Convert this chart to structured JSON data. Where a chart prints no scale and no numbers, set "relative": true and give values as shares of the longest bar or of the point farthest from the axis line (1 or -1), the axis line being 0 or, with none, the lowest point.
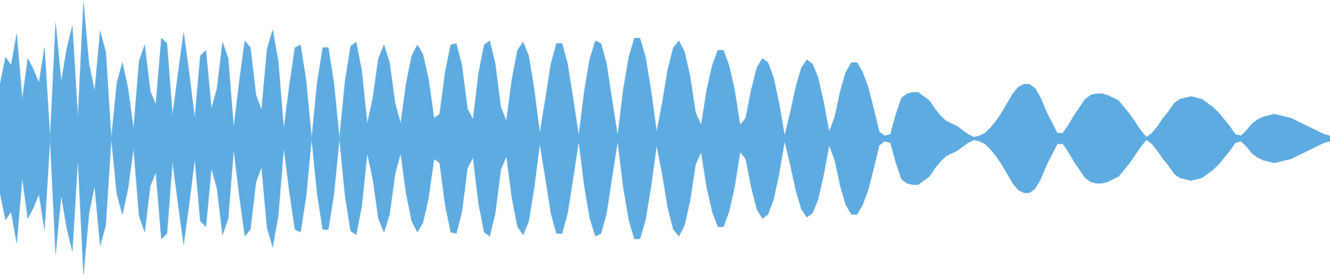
{
  "chart_data": {
    "type": "area",
    "relative": true,
    "ref_lines": [
      {
        "axis": "y",
        "value": 0,
        "color": "#5dabe0"
      }
    ],
    "categories": [
      null,
      null,
      null,
      null,
      null,
      null,
      null,
      null,
      null,
      null,
      null,
      null,
      null,
      null,
      null,
      null,
      null,
      null,
      null,
      null,
      null,
      null,
      null,
      null,
      null,
      null,
      null,
      null,
      null,
      null,
      null,
      null,
      null,
      null,
      null,
      null,
      null,
      null,
      null,
      null,
      null,
      null,
      null,
      null,
      null,
      null,
      null,
      null,
      null,
      null,
      null,
      null,
      null,
      null,
      null,
      null,
      null,
      null,
      null,
      null,
      null,
      null,
      null,
      null,
      null,
      null,
      null,
      null,
      null,
      null,
      null,
      null,
      null,
      null,
      null,
      null,
      null,
      null,
      null,
      null,
      null,
      null,
      null,
      null,
      null,
      null,
      null,
      null,
      null,
      null,
      null,
      null,
      null,
      null,
      null,
      null,
      null,
      null,
      null,
      null,
      null,
      null,
      null,
      null,
      null,
      null,
      null,
      null,
      null,
      null,
      null,
      null,
      null,
      null,
      null,
      null,
      null,
      null,
      null,
      null,
      null,
      null,
      null,
      null,
      null,
      null,
      null,
      null,
      null,
      null,
      null,
      null,
      null,
      null,
      null,
      null,
      null,
      null,
      null,
      null,
      null,
      null,
      null,
      null,
      null,
      null,
      null,
      null,
      null,
      null,
      null,
      null,
      null,
      null,
      null,
      null,
      null,
      null,
      null,
      null,
      null,
      null,
      null,
      null,
      null,
      null,
      null,
      null,
      null,
      null,
      null,
      null,
      null,
      null,
      null,
      null,
      null,
      null,
      null,
      null,
      null,
      null,
      null,
      null,
      null,
      null,
      null,
      null,
      null,
      null,
      null,
      null,
      null,
      null,
      null,
      null,
      null,
      null,
      null,
      null,
      null,
      null,
      null,
      null,
      null,
      null,
      null,
      null,
      null,
      null,
      null,
      null,
      null,
      null,
      null,
      null,
      null,
      null,
      null,
      null,
      null,
      null,
      null,
      null,
      null,
      null,
      null,
      null,
      null,
      null,
      null,
      null,
      null,
      null,
      null,
      null,
      null,
      null,
      null,
      null
    ],
    "series": [
      {
        "color": "#5dabe0",
        "values": [
          0.4,
          0.6,
          0.54,
          0.77,
          0.29,
          0.59,
          0.51,
          0.41,
          0.67,
          0,
          0.85,
          0.42,
          0.66,
          0.83,
          0.15,
          1,
          0.55,
          0.35,
          0.79,
          0.64,
          0,
          0.41,
          0.56,
          0.37,
          0.07,
          0.57,
          0.69,
          0.35,
          0.25,
          0.74,
          0.7,
          0.17,
          0.48,
          0.78,
          0.48,
          0.15,
          0.61,
          0.65,
          0.22,
          0.37,
          0.71,
          0.59,
          0.08,
          0.42,
          0.72,
          0.67,
          0.32,
          0.21,
          0.66,
          0.8,
          0.57,
          0.07,
          0.39,
          0.67,
          0.69,
          0.43,
          0,
          0.41,
          0.67,
          0.67,
          0.41,
          0,
          0.42,
          0.68,
          0.71,
          0.5,
          0.11,
          0.3,
          0.59,
          0.69,
          0.56,
          0.26,
          0.11,
          0.41,
          0.61,
          0.69,
          0.62,
          0.44,
          0.15,
          0.18,
          0.49,
          0.69,
          0.7,
          0.54,
          0.22,
          0.14,
          0.48,
          0.69,
          0.72,
          0.55,
          0.23,
          0.13,
          0.44,
          0.65,
          0.71,
          0.61,
          0.36,
          0.04,
          0.29,
          0.55,
          0.7,
          0.7,
          0.55,
          0.29,
          0.02,
          0.35,
          0.59,
          0.72,
          0.7,
          0.55,
          0.28,
          0.02,
          0.36,
          0.6,
          0.74,
          0.74,
          0.6,
          0.35,
          0.05,
          0.26,
          0.51,
          0.67,
          0.72,
          0.64,
          0.46,
          0.19,
          0.1,
          0.36,
          0.54,
          0.65,
          0.65,
          0.54,
          0.36,
          0.1,
          0.15,
          0.36,
          0.52,
          0.59,
          0.56,
          0.45,
          0.26,
          0.02,
          0.19,
          0.38,
          0.52,
          0.58,
          0.55,
          0.45,
          0.27,
          0.05,
          0.16,
          0.35,
          0.49,
          0.56,
          0.56,
          0.49,
          0.38,
          0.22,
          0.05,
          0.02,
          0.03,
          0.18,
          0.3,
          0.33,
          0.34,
          0.34,
          0.31,
          0.28,
          0.22,
          0.17,
          0.13,
          0.11,
          0.09,
          0.06,
          0.03,
          0.01,
          0.02,
          0.04,
          0.08,
          0.13,
          0.19,
          0.26,
          0.33,
          0.38,
          0.4,
          0.4,
          0.37,
          0.3,
          0.2,
          0.12,
          0.04,
          0.04,
          0.1,
          0.17,
          0.23,
          0.29,
          0.32,
          0.33,
          0.33,
          0.32,
          0.3,
          0.28,
          0.23,
          0.18,
          0.12,
          0.06,
          0.01,
          0.04,
          0.09,
          0.15,
          0.2,
          0.26,
          0.29,
          0.3,
          0.31,
          0.3,
          0.29,
          0.26,
          0.23,
          0.19,
          0.14,
          0.09,
          0.03,
          0.02,
          0.06,
          0.11,
          0.14,
          0.16,
          0.17,
          0.18,
          0.17,
          0.16,
          0.15,
          0.13,
          0.11,
          0.09,
          0.07,
          0.05,
          0.03,
          0.02
        ]
      },
      {
        "color": "#5dabe0",
        "values": [
          -0.4,
          -0.6,
          -0.54,
          -0.77,
          -0.29,
          -0.59,
          -0.51,
          -0.41,
          -0.67,
          0,
          -0.85,
          -0.42,
          -0.66,
          -0.83,
          -0.15,
          -1,
          -0.55,
          -0.35,
          -0.79,
          -0.64,
          0,
          -0.41,
          -0.56,
          -0.37,
          -0.07,
          -0.57,
          -0.69,
          -0.35,
          -0.25,
          -0.74,
          -0.7,
          -0.17,
          -0.48,
          -0.78,
          -0.48,
          -0.15,
          -0.61,
          -0.65,
          -0.22,
          -0.37,
          -0.71,
          -0.59,
          -0.08,
          -0.42,
          -0.72,
          -0.67,
          -0.32,
          -0.21,
          -0.66,
          -0.8,
          -0.57,
          -0.07,
          -0.39,
          -0.67,
          -0.69,
          -0.43,
          0,
          -0.41,
          -0.67,
          -0.67,
          -0.41,
          0,
          -0.42,
          -0.68,
          -0.71,
          -0.5,
          -0.11,
          -0.3,
          -0.59,
          -0.69,
          -0.56,
          -0.26,
          -0.11,
          -0.41,
          -0.61,
          -0.69,
          -0.62,
          -0.44,
          -0.15,
          -0.18,
          -0.49,
          -0.69,
          -0.7,
          -0.54,
          -0.22,
          -0.14,
          -0.48,
          -0.69,
          -0.72,
          -0.55,
          -0.23,
          -0.13,
          -0.44,
          -0.65,
          -0.71,
          -0.61,
          -0.36,
          -0.04,
          -0.29,
          -0.55,
          -0.7,
          -0.7,
          -0.55,
          -0.29,
          -0.02,
          -0.35,
          -0.59,
          -0.72,
          -0.7,
          -0.55,
          -0.28,
          -0.02,
          -0.36,
          -0.6,
          -0.74,
          -0.74,
          -0.6,
          -0.35,
          -0.05,
          -0.26,
          -0.51,
          -0.67,
          -0.72,
          -0.64,
          -0.46,
          -0.19,
          -0.1,
          -0.36,
          -0.54,
          -0.65,
          -0.65,
          -0.54,
          -0.36,
          -0.1,
          -0.15,
          -0.36,
          -0.52,
          -0.59,
          -0.56,
          -0.45,
          -0.26,
          -0.02,
          -0.19,
          -0.38,
          -0.52,
          -0.58,
          -0.55,
          -0.45,
          -0.27,
          -0.05,
          -0.16,
          -0.35,
          -0.49,
          -0.56,
          -0.56,
          -0.49,
          -0.38,
          -0.22,
          -0.05,
          -0.02,
          -0.03,
          -0.18,
          -0.3,
          -0.33,
          -0.34,
          -0.34,
          -0.31,
          -0.28,
          -0.22,
          -0.17,
          -0.13,
          -0.11,
          -0.09,
          -0.06,
          -0.03,
          -0.01,
          -0.02,
          -0.04,
          -0.08,
          -0.13,
          -0.19,
          -0.26,
          -0.33,
          -0.38,
          -0.4,
          -0.4,
          -0.37,
          -0.3,
          -0.2,
          -0.12,
          -0.04,
          -0.04,
          -0.1,
          -0.17,
          -0.23,
          -0.29,
          -0.32,
          -0.33,
          -0.33,
          -0.32,
          -0.3,
          -0.28,
          -0.23,
          -0.18,
          -0.12,
          -0.06,
          -0.01,
          -0.04,
          -0.09,
          -0.15,
          -0.2,
          -0.26,
          -0.29,
          -0.3,
          -0.31,
          -0.3,
          -0.29,
          -0.26,
          -0.23,
          -0.19,
          -0.14,
          -0.09,
          -0.03,
          -0.02,
          -0.06,
          -0.11,
          -0.14,
          -0.16,
          -0.17,
          -0.18,
          -0.17,
          -0.16,
          -0.15,
          -0.13,
          -0.11,
          -0.09,
          -0.07,
          -0.05,
          -0.03,
          -0.02
        ]
      }
    ]
  }
}
